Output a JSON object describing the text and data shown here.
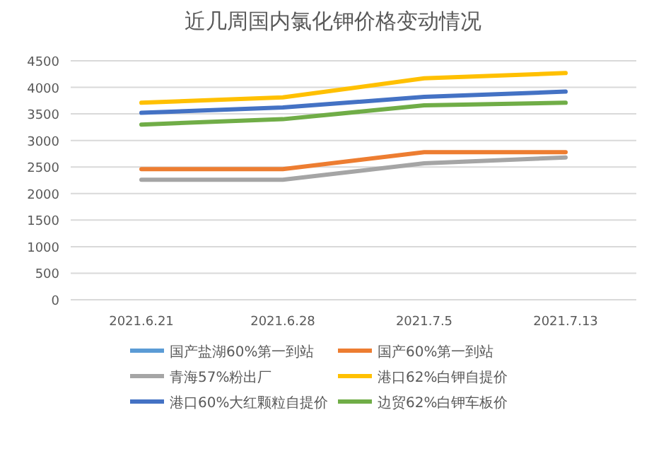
{
  "chart_data": {
    "type": "line",
    "title": "近几周国内氯化钾价格变动情况",
    "categories": [
      "2021.6.21",
      "2021.6.28",
      "2021.7.5",
      "2021.7.13"
    ],
    "series": [
      {
        "name": "国产盐湖60%第一到站",
        "color": "#5b9bd5",
        "values": [
          null,
          null,
          null,
          null
        ]
      },
      {
        "name": "国产60%第一到站",
        "color": "#ed7d31",
        "values": [
          2460,
          2460,
          2780,
          2780
        ]
      },
      {
        "name": "青海57%粉出厂",
        "color": "#a5a5a5",
        "values": [
          2260,
          2260,
          2570,
          2680
        ]
      },
      {
        "name": "港口62%白钾自提价",
        "color": "#ffc000",
        "values": [
          3710,
          3810,
          4170,
          4270
        ]
      },
      {
        "name": "港口60%大红颗粒自提价",
        "color": "#4472c4",
        "values": [
          3520,
          3620,
          3820,
          3920
        ]
      },
      {
        "name": "边贸62%白钾车板价",
        "color": "#70ad47",
        "values": [
          3300,
          3400,
          3660,
          3710
        ]
      }
    ],
    "ylim": [
      0,
      4500
    ],
    "yticks": [
      0,
      500,
      1000,
      1500,
      2000,
      2500,
      3000,
      3500,
      4000,
      4500
    ],
    "grid": true,
    "legend": "bottom"
  }
}
